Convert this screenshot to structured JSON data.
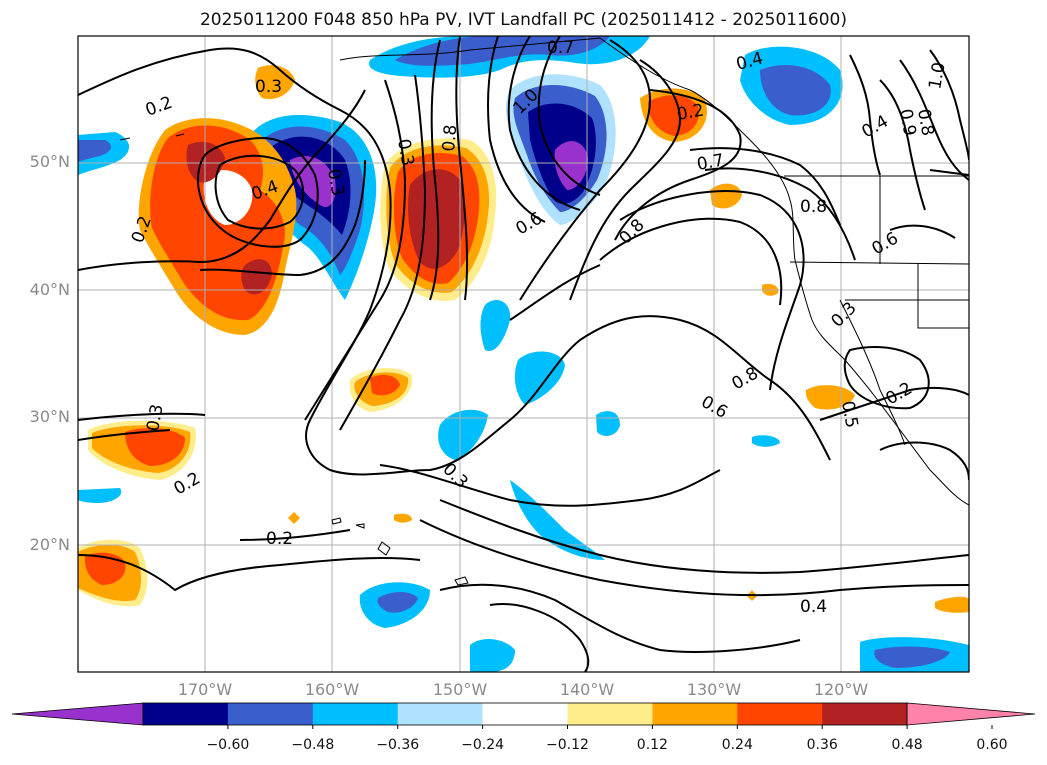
{
  "title": "2025011200 F048 850 hPa PV, IVT Landfall PC (2025011412 - 2025011600)",
  "lat_labels": [
    "50°N",
    "40°N",
    "30°N",
    "20°N"
  ],
  "lon_labels": [
    "170°W",
    "160°W",
    "150°W",
    "140°W",
    "130°W",
    "120°W"
  ],
  "extent": {
    "lon_min": -180,
    "lon_max": -110,
    "lat_min": 10,
    "lat_max": 60
  },
  "colorbar": {
    "ticks": [
      "−0.60",
      "−0.48",
      "−0.36",
      "−0.24",
      "−0.12",
      "0.12",
      "0.24",
      "0.36",
      "0.48",
      "0.60"
    ],
    "colors": [
      "#9932cc",
      "#00008b",
      "#3a5fcd",
      "#00bfff",
      "#b0e2ff",
      "#ffffff",
      "#ffec8b",
      "#ffa500",
      "#ff4500",
      "#b22222",
      "#ff82ab"
    ],
    "extend": "both"
  },
  "contour_labels": [
    "0.2",
    "0.3",
    "0.4",
    "0.3",
    "0.8",
    "0.7",
    "1.0",
    "0.6",
    "0.4",
    "0.9",
    "0.8",
    "1.0",
    "0.4",
    "0.2",
    "0.3",
    "0.2",
    "0.7",
    "0.8",
    "0.8",
    "0.6",
    "0.8",
    "0.6",
    "0.3",
    "0.5",
    "0.2",
    "0.3",
    "0.2",
    "0.2",
    "0.4",
    "0.3"
  ]
}
